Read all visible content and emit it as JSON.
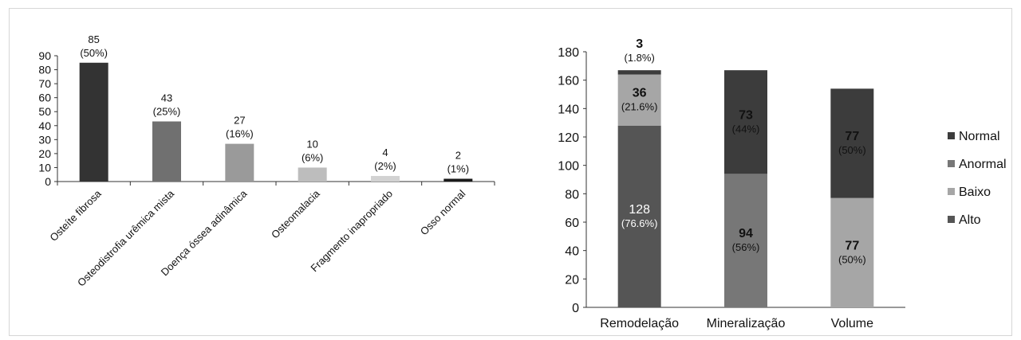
{
  "chart_data": [
    {
      "type": "bar",
      "categories": [
        "Osteíte fibrosa",
        "Osteodistrofia urêmica mista",
        "Doença óssea adinâmica",
        "Osteomalacia",
        "Fragmento inapropriado",
        "Osso normal"
      ],
      "values": [
        85,
        43,
        27,
        10,
        4,
        2
      ],
      "value_labels": [
        "85",
        "43",
        "27",
        "10",
        "4",
        "2"
      ],
      "percent_labels": [
        "(50%)",
        "(25%)",
        "(16%)",
        "(6%)",
        "(2%)",
        "(1%)"
      ],
      "colors": [
        "#333333",
        "#707070",
        "#9a9a9a",
        "#bdbdbd",
        "#d2d2d2",
        "#1a1a1a"
      ],
      "ylim": [
        0,
        90
      ],
      "yticks": [
        0,
        10,
        20,
        30,
        40,
        50,
        60,
        70,
        80,
        90
      ],
      "grid": false,
      "title": "",
      "xlabel": "",
      "ylabel": ""
    },
    {
      "type": "bar",
      "stacked": true,
      "categories": [
        "Remodelação",
        "Mineralização",
        "Volume"
      ],
      "ylim": [
        0,
        180
      ],
      "yticks": [
        0,
        20,
        40,
        60,
        80,
        100,
        120,
        140,
        160,
        180
      ],
      "grid": false,
      "legend_position": "right",
      "legend_order": [
        "Normal",
        "Anormal",
        "Baixo",
        "Alto"
      ],
      "series": [
        {
          "name": "Alto",
          "color": "#555555",
          "values": [
            128,
            0,
            0
          ],
          "labels": [
            "128",
            "",
            ""
          ],
          "percent_labels": [
            "(76.6%)",
            "",
            ""
          ]
        },
        {
          "name": "Baixo",
          "color": "#a6a6a6",
          "values": [
            36,
            0,
            77
          ],
          "labels": [
            "36",
            "",
            "77"
          ],
          "percent_labels": [
            "(21.6%)",
            "",
            "(50%)"
          ]
        },
        {
          "name": "Anormal",
          "color": "#777777",
          "values": [
            0,
            94,
            0
          ],
          "labels": [
            "",
            "94",
            ""
          ],
          "percent_labels": [
            "",
            "(56%)",
            ""
          ]
        },
        {
          "name": "Normal",
          "color": "#3c3c3c",
          "values": [
            3,
            73,
            77
          ],
          "labels": [
            "3",
            "73",
            "77"
          ],
          "percent_labels": [
            "(1.8%)",
            "(44%)",
            "(50%)"
          ]
        }
      ],
      "title": "",
      "xlabel": "",
      "ylabel": ""
    }
  ]
}
